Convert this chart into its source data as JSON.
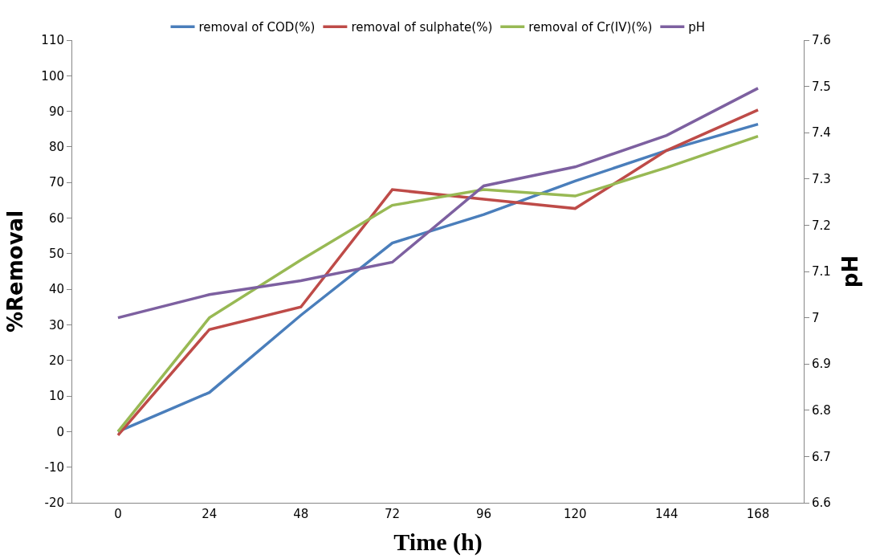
{
  "chart_data": {
    "type": "line",
    "xlabel": "Time (h)",
    "ylabel": "%Removal",
    "y2label": "pH",
    "categories": [
      "0",
      "24",
      "48",
      "72",
      "96",
      "120",
      "144",
      "168"
    ],
    "series": [
      {
        "name": "removal of COD(%)",
        "color": "#4a7ebb",
        "values": [
          0,
          11,
          32.7,
          53,
          61,
          70.4,
          79,
          86.4
        ]
      },
      {
        "name": "removal of sulphate(%)",
        "color": "#be4b48",
        "values": [
          -1,
          28.7,
          35,
          68,
          65.3,
          62.7,
          79,
          90.4
        ]
      },
      {
        "name": "removal of Cr(IV)(%)",
        "color": "#98b954",
        "values": [
          0,
          32,
          48.2,
          63.6,
          68,
          66.2,
          74.2,
          83
        ]
      },
      {
        "name": "pH",
        "color": "#7d60a0",
        "axis": "y2",
        "values": [
          7.0,
          7.05,
          7.08,
          7.12,
          7.285,
          7.326,
          7.394,
          7.496
        ]
      }
    ],
    "ylim": [
      -20,
      110
    ],
    "yticks": [
      -20,
      -10,
      0,
      10,
      20,
      30,
      40,
      50,
      60,
      70,
      80,
      90,
      100,
      110
    ],
    "y2lim": [
      6.6,
      7.6
    ],
    "y2ticks": [
      6.6,
      6.7,
      6.8,
      6.9,
      7,
      7.1,
      7.2,
      7.3,
      7.4,
      7.5,
      7.6
    ],
    "legend": "top",
    "marker": "none",
    "line_style": "solid"
  }
}
